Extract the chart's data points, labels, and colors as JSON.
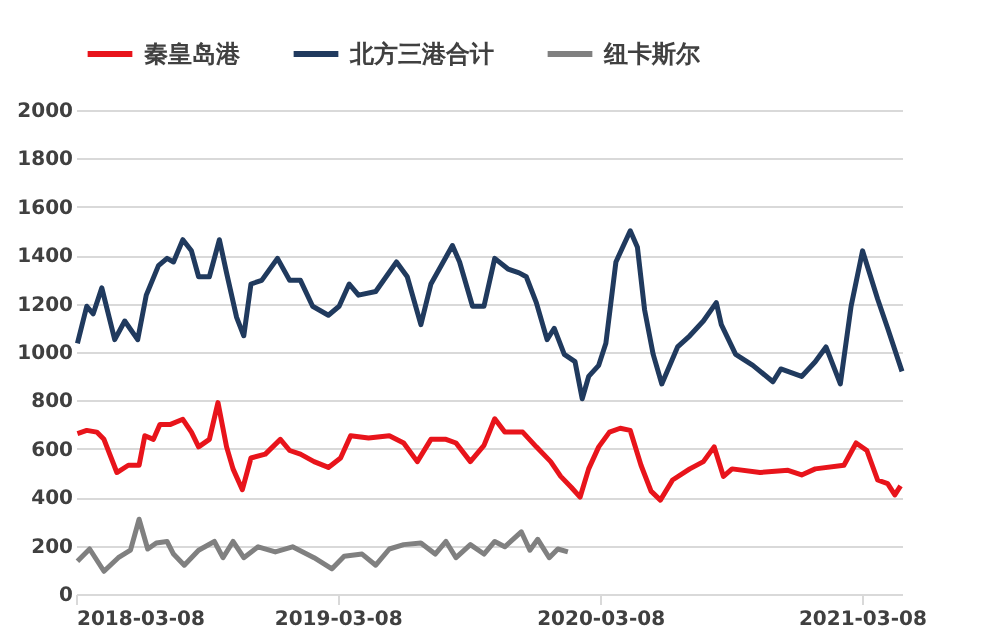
{
  "chart_data": {
    "type": "line",
    "xlim": [
      "2018-03-08",
      "2021-05-03"
    ],
    "xticks": [
      "2018-03-08",
      "2019-03-08",
      "2020-03-08",
      "2021-03-08"
    ],
    "ylim": [
      0,
      2000
    ],
    "yticks": [
      0,
      200,
      400,
      600,
      800,
      1000,
      1200,
      1400,
      1600,
      1800,
      2000
    ],
    "grid": "y",
    "legend": "top",
    "marker": "none",
    "line_style": "solid",
    "series": [
      {
        "name": "秦皇岛港",
        "color": "#e8141b",
        "x": [
          "2018-03-10",
          "2018-03-23",
          "2018-04-06",
          "2018-04-16",
          "2018-05-04",
          "2018-05-20",
          "2018-06-04",
          "2018-06-12",
          "2018-06-24",
          "2018-07-03",
          "2018-07-17",
          "2018-08-04",
          "2018-08-16",
          "2018-08-26",
          "2018-09-10",
          "2018-09-22",
          "2018-10-04",
          "2018-10-13",
          "2018-10-26",
          "2018-11-07",
          "2018-11-27",
          "2018-12-18",
          "2018-12-31",
          "2019-01-15",
          "2019-02-03",
          "2019-02-23",
          "2019-03-12",
          "2019-03-26",
          "2019-04-20",
          "2019-05-19",
          "2019-06-08",
          "2019-06-27",
          "2019-07-16",
          "2019-08-06",
          "2019-08-20",
          "2019-09-09",
          "2019-09-28",
          "2019-10-13",
          "2019-10-27",
          "2019-11-21",
          "2019-12-10",
          "2019-12-30",
          "2020-01-13",
          "2020-01-28",
          "2020-02-09",
          "2020-02-21",
          "2020-03-06",
          "2020-03-21",
          "2020-04-05",
          "2020-04-19",
          "2020-05-04",
          "2020-05-18",
          "2020-05-31",
          "2020-06-17",
          "2020-07-11",
          "2020-07-30",
          "2020-08-14",
          "2020-08-27",
          "2020-09-08",
          "2020-10-17",
          "2020-11-25",
          "2020-12-14",
          "2021-01-02",
          "2021-02-11",
          "2021-02-28",
          "2021-03-15",
          "2021-03-30",
          "2021-04-13",
          "2021-04-23",
          "2021-05-01"
        ],
        "values": [
          663,
          676,
          669,
          639,
          502,
          532,
          532,
          654,
          639,
          700,
          700,
          722,
          669,
          608,
          639,
          791,
          608,
          517,
          431,
          562,
          578,
          639,
          593,
          578,
          547,
          523,
          562,
          654,
          645,
          654,
          624,
          547,
          639,
          639,
          624,
          547,
          614,
          724,
          669,
          669,
          608,
          547,
          486,
          440,
          400,
          517,
          608,
          669,
          685,
          676,
          532,
          425,
          388,
          471,
          517,
          547,
          608,
          486,
          517,
          502,
          511,
          492,
          517,
          532,
          624,
          593,
          471,
          456,
          410,
          447
        ]
      },
      {
        "name": "北方三港合计",
        "color": "#203a5e",
        "x": [
          "2018-03-10",
          "2018-03-23",
          "2018-04-01",
          "2018-04-13",
          "2018-05-01",
          "2018-05-15",
          "2018-06-02",
          "2018-06-14",
          "2018-07-01",
          "2018-07-13",
          "2018-07-22",
          "2018-08-04",
          "2018-08-16",
          "2018-08-26",
          "2018-09-10",
          "2018-09-24",
          "2018-10-04",
          "2018-10-18",
          "2018-10-28",
          "2018-11-07",
          "2018-11-22",
          "2018-12-14",
          "2018-12-31",
          "2019-01-15",
          "2019-02-01",
          "2019-02-23",
          "2019-03-10",
          "2019-03-24",
          "2019-04-06",
          "2019-04-30",
          "2019-05-29",
          "2019-06-13",
          "2019-07-02",
          "2019-07-16",
          "2019-08-15",
          "2019-08-25",
          "2019-09-12",
          "2019-09-28",
          "2019-10-13",
          "2019-11-01",
          "2019-11-16",
          "2019-11-26",
          "2019-12-10",
          "2019-12-25",
          "2020-01-04",
          "2020-01-18",
          "2020-02-02",
          "2020-02-12",
          "2020-02-21",
          "2020-03-06",
          "2020-03-16",
          "2020-03-30",
          "2020-04-19",
          "2020-04-29",
          "2020-05-09",
          "2020-05-21",
          "2020-06-02",
          "2020-06-24",
          "2020-07-11",
          "2020-07-30",
          "2020-08-17",
          "2020-08-24",
          "2020-09-13",
          "2020-10-07",
          "2020-11-04",
          "2020-11-15",
          "2020-12-14",
          "2021-01-02",
          "2021-01-17",
          "2021-02-06",
          "2021-02-21",
          "2021-03-09",
          "2021-03-30",
          "2021-04-13",
          "2021-05-03"
        ],
        "values": [
          1036,
          1189,
          1158,
          1265,
          1051,
          1128,
          1051,
          1235,
          1357,
          1387,
          1372,
          1464,
          1418,
          1311,
          1311,
          1464,
          1327,
          1143,
          1067,
          1281,
          1296,
          1387,
          1296,
          1296,
          1189,
          1152,
          1189,
          1281,
          1235,
          1250,
          1372,
          1311,
          1113,
          1281,
          1440,
          1372,
          1189,
          1189,
          1387,
          1342,
          1327,
          1311,
          1204,
          1051,
          1098,
          990,
          960,
          807,
          899,
          945,
          1036,
          1372,
          1501,
          1433,
          1174,
          990,
          868,
          1021,
          1067,
          1128,
          1204,
          1113,
          990,
          945,
          877,
          930,
          899,
          960,
          1021,
          868,
          1189,
          1418,
          1219,
          1098,
          920
        ]
      },
      {
        "name": "纽卡斯尔",
        "color": "#808080",
        "x": [
          "2018-03-10",
          "2018-03-27",
          "2018-04-16",
          "2018-05-06",
          "2018-05-23",
          "2018-06-04",
          "2018-06-16",
          "2018-06-28",
          "2018-07-13",
          "2018-07-22",
          "2018-08-06",
          "2018-08-26",
          "2018-09-17",
          "2018-09-29",
          "2018-10-13",
          "2018-10-28",
          "2018-11-17",
          "2018-12-11",
          "2019-01-04",
          "2019-02-03",
          "2019-02-28",
          "2019-03-17",
          "2019-04-11",
          "2019-04-30",
          "2019-05-19",
          "2019-06-08",
          "2019-07-02",
          "2019-07-22",
          "2019-08-06",
          "2019-08-20",
          "2019-09-09",
          "2019-09-28",
          "2019-10-13",
          "2019-10-27",
          "2019-11-19",
          "2019-12-01",
          "2019-12-12",
          "2019-12-28",
          "2020-01-09",
          "2020-01-23"
        ],
        "values": [
          135,
          186,
          94,
          150,
          181,
          309,
          186,
          211,
          217,
          165,
          119,
          181,
          217,
          150,
          217,
          150,
          195,
          174,
          195,
          150,
          104,
          156,
          165,
          119,
          186,
          204,
          211,
          165,
          217,
          150,
          204,
          165,
          217,
          195,
          257,
          181,
          226,
          150,
          186,
          174
        ]
      }
    ]
  }
}
